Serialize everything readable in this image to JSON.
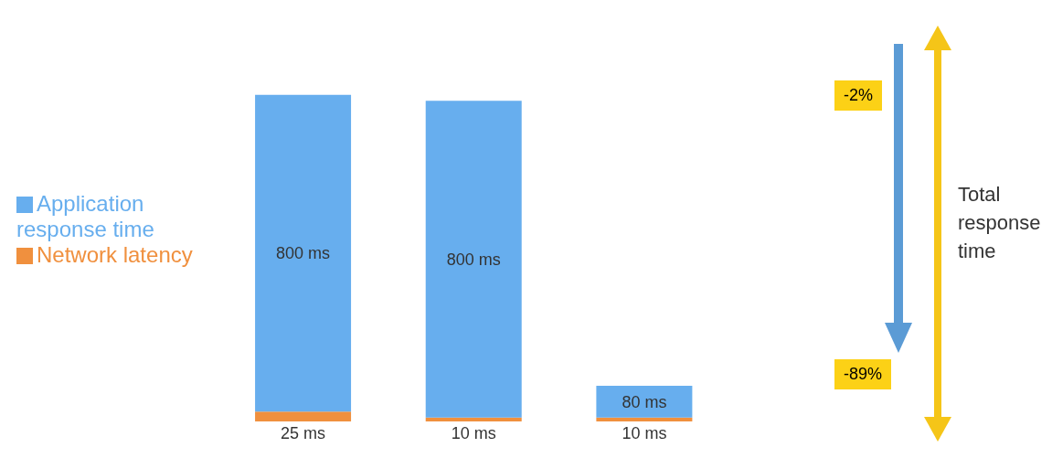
{
  "chart_data": {
    "type": "bar",
    "stacked": true,
    "categories": [
      null,
      null,
      null
    ],
    "series": [
      {
        "name": "Network latency",
        "color": "#f0903e",
        "values": [
          25,
          10,
          10
        ],
        "value_labels": [
          "25 ms",
          "10 ms",
          "10 ms"
        ]
      },
      {
        "name": "Application response time",
        "color": "#67aeee",
        "values": [
          800,
          800,
          80
        ],
        "value_labels": [
          "800 ms",
          "800 ms",
          "80 ms"
        ]
      }
    ],
    "legend": "left",
    "grid": false,
    "annotations": [
      "-2%",
      "-89%",
      "Total response time"
    ]
  }
}
